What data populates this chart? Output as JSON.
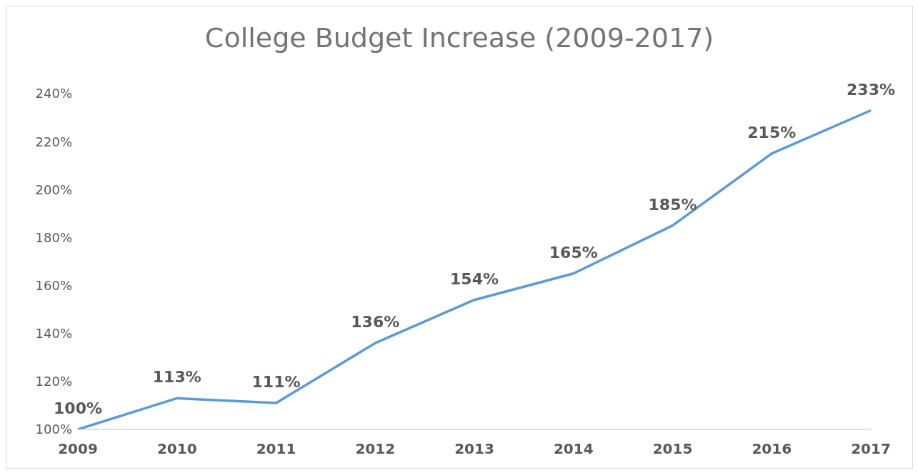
{
  "chart_data": {
    "type": "line",
    "title": "College Budget Increase (2009-2017)",
    "categories": [
      "2009",
      "2010",
      "2011",
      "2012",
      "2013",
      "2014",
      "2015",
      "2016",
      "2017"
    ],
    "series": [
      {
        "color": "#5b9bd5",
        "values": [
          100,
          113,
          111,
          136,
          154,
          165,
          185,
          215,
          233
        ],
        "value_labels": [
          "100%",
          "113%",
          "111%",
          "136%",
          "154%",
          "165%",
          "185%",
          "215%",
          "233%"
        ]
      }
    ],
    "ylim": [
      100,
      240
    ],
    "yticks": [
      {
        "value": 100,
        "label": "100%"
      },
      {
        "value": 120,
        "label": "120%"
      },
      {
        "value": 140,
        "label": "140%"
      },
      {
        "value": 160,
        "label": "160%"
      },
      {
        "value": 180,
        "label": "180%"
      },
      {
        "value": 200,
        "label": "200%"
      },
      {
        "value": 220,
        "label": "220%"
      },
      {
        "value": 240,
        "label": "240%"
      }
    ],
    "grid": false,
    "legend": false,
    "marker": "none",
    "line_style": "solid"
  }
}
